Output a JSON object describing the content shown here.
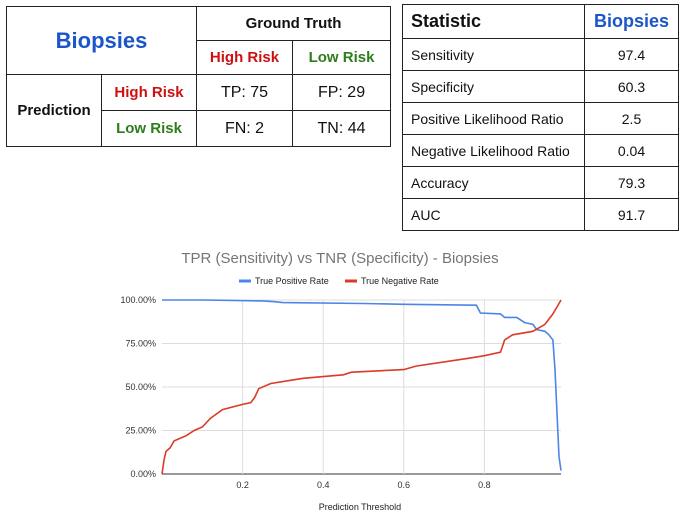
{
  "confusion_matrix": {
    "title": "Biopsies",
    "ground_truth_label": "Ground Truth",
    "prediction_label": "Prediction",
    "high_risk": "High Risk",
    "low_risk": "Low Risk",
    "tp": "TP: 75",
    "fp": "FP: 29",
    "fn": "FN: 2",
    "tn": "TN: 44"
  },
  "stats_table": {
    "header_statistic": "Statistic",
    "header_value": "Biopsies",
    "rows": [
      {
        "label": "Sensitivity",
        "value": "97.4"
      },
      {
        "label": "Specificity",
        "value": "60.3"
      },
      {
        "label": "Positive Likelihood Ratio",
        "value": "2.5"
      },
      {
        "label": "Negative Likelihood Ratio",
        "value": "0.04"
      },
      {
        "label": "Accuracy",
        "value": "79.3"
      },
      {
        "label": "AUC",
        "value": "91.7"
      }
    ]
  },
  "colors": {
    "title_blue": "#1a56c9",
    "high_risk_red": "#cc1111",
    "low_risk_green": "#2e7d1c",
    "tpr_line": "#4a86e8",
    "tnr_line": "#db3a27"
  },
  "chart_data": {
    "type": "line",
    "title": "TPR (Sensitivity) vs TNR (Specificity) - Biopsies",
    "xlabel": "Prediction Threshold",
    "ylabel": "",
    "xlim": [
      0,
      0.99
    ],
    "ylim": [
      0,
      1
    ],
    "x_ticks": [
      0.2,
      0.4,
      0.6,
      0.8
    ],
    "x_tick_labels": [
      "0.2",
      "0.4",
      "0.6",
      "0.8"
    ],
    "y_ticks": [
      0,
      0.25,
      0.5,
      0.75,
      1
    ],
    "y_tick_labels": [
      "0.00%",
      "25.00%",
      "50.00%",
      "75.00%",
      "100.00%"
    ],
    "grid": true,
    "legend_position": "top",
    "series": [
      {
        "name": "True Positive Rate",
        "color": "#4a86e8",
        "points": [
          [
            0.0,
            1.0
          ],
          [
            0.1,
            1.0
          ],
          [
            0.25,
            0.995
          ],
          [
            0.28,
            0.99
          ],
          [
            0.3,
            0.985
          ],
          [
            0.5,
            0.98
          ],
          [
            0.6,
            0.975
          ],
          [
            0.78,
            0.97
          ],
          [
            0.79,
            0.925
          ],
          [
            0.84,
            0.92
          ],
          [
            0.85,
            0.9
          ],
          [
            0.88,
            0.9
          ],
          [
            0.9,
            0.87
          ],
          [
            0.92,
            0.86
          ],
          [
            0.93,
            0.83
          ],
          [
            0.95,
            0.82
          ],
          [
            0.96,
            0.8
          ],
          [
            0.97,
            0.77
          ],
          [
            0.975,
            0.6
          ],
          [
            0.98,
            0.35
          ],
          [
            0.985,
            0.1
          ],
          [
            0.99,
            0.02
          ]
        ]
      },
      {
        "name": "True Negative Rate",
        "color": "#db3a27",
        "points": [
          [
            0.0,
            0.0
          ],
          [
            0.005,
            0.08
          ],
          [
            0.01,
            0.13
          ],
          [
            0.02,
            0.15
          ],
          [
            0.03,
            0.19
          ],
          [
            0.06,
            0.22
          ],
          [
            0.08,
            0.25
          ],
          [
            0.1,
            0.27
          ],
          [
            0.12,
            0.32
          ],
          [
            0.15,
            0.37
          ],
          [
            0.2,
            0.4
          ],
          [
            0.22,
            0.41
          ],
          [
            0.23,
            0.44
          ],
          [
            0.24,
            0.49
          ],
          [
            0.27,
            0.52
          ],
          [
            0.35,
            0.55
          ],
          [
            0.45,
            0.57
          ],
          [
            0.47,
            0.585
          ],
          [
            0.6,
            0.6
          ],
          [
            0.63,
            0.62
          ],
          [
            0.76,
            0.665
          ],
          [
            0.8,
            0.68
          ],
          [
            0.84,
            0.7
          ],
          [
            0.85,
            0.77
          ],
          [
            0.87,
            0.8
          ],
          [
            0.92,
            0.82
          ],
          [
            0.95,
            0.86
          ],
          [
            0.97,
            0.92
          ],
          [
            0.98,
            0.96
          ],
          [
            0.99,
            1.0
          ]
        ]
      }
    ]
  }
}
